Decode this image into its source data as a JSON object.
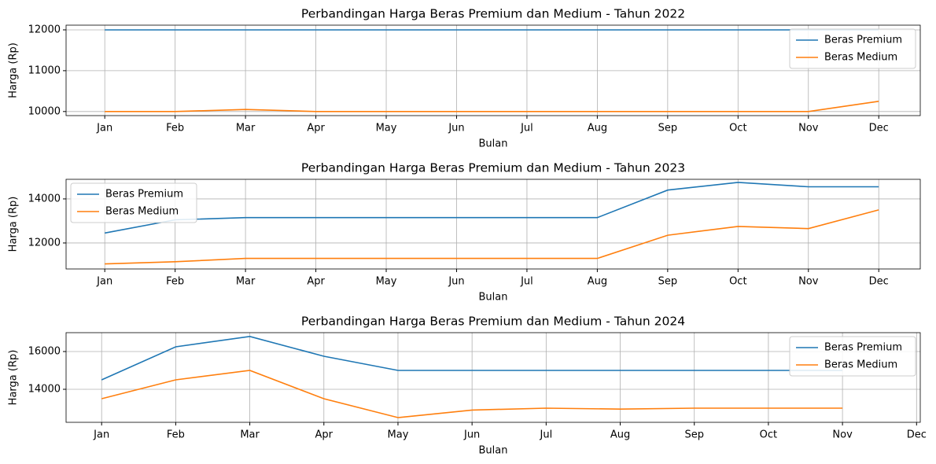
{
  "chart_data": [
    {
      "type": "line",
      "title": "Perbandingan Harga Beras Premium dan Medium - Tahun 2022",
      "x_label": "Bulan",
      "y_label": "Harga (Rp)",
      "categories": [
        "Jan",
        "Feb",
        "Mar",
        "Apr",
        "May",
        "Jun",
        "Jul",
        "Aug",
        "Sep",
        "Oct",
        "Nov",
        "Dec"
      ],
      "series": [
        {
          "name": "Beras Premium",
          "color": "#1f77b4",
          "values": [
            12000,
            12000,
            12000,
            12000,
            12000,
            12000,
            12000,
            12000,
            12000,
            12000,
            12000,
            12000
          ]
        },
        {
          "name": "Beras Medium",
          "color": "#ff7f0e",
          "values": [
            10000,
            10000,
            10050,
            10000,
            10000,
            10000,
            10000,
            10000,
            10000,
            10000,
            10000,
            10250
          ]
        }
      ],
      "ylim": [
        9900,
        12115
      ],
      "yticks": [
        10000,
        11000,
        12000
      ],
      "grid": true,
      "legend": "upper right"
    },
    {
      "type": "line",
      "title": "Perbandingan Harga Beras Premium dan Medium - Tahun 2023",
      "x_label": "Bulan",
      "y_label": "Harga (Rp)",
      "categories": [
        "Jan",
        "Feb",
        "Mar",
        "Apr",
        "May",
        "Jun",
        "Jul",
        "Aug",
        "Sep",
        "Oct",
        "Nov",
        "Dec"
      ],
      "series": [
        {
          "name": "Beras Premium",
          "color": "#1f77b4",
          "values": [
            12450,
            13050,
            13150,
            13150,
            13150,
            13150,
            13150,
            13150,
            14400,
            14750,
            14550,
            14550
          ]
        },
        {
          "name": "Beras Medium",
          "color": "#ff7f0e",
          "values": [
            11050,
            11150,
            11300,
            11300,
            11300,
            11300,
            11300,
            11300,
            12350,
            12750,
            12650,
            13500
          ]
        }
      ],
      "ylim": [
        10820,
        14890
      ],
      "yticks": [
        12000,
        14000
      ],
      "grid": true,
      "legend": "upper left"
    },
    {
      "type": "line",
      "title": "Perbandingan Harga Beras Premium dan Medium - Tahun 2024",
      "x_label": "Bulan",
      "y_label": "Harga (Rp)",
      "categories": [
        "Jan",
        "Feb",
        "Mar",
        "Apr",
        "May",
        "Jun",
        "Jul",
        "Aug",
        "Sep",
        "Oct",
        "Nov",
        "Dec"
      ],
      "series": [
        {
          "name": "Beras Premium",
          "color": "#1f77b4",
          "values": [
            14500,
            16250,
            16800,
            15750,
            15000,
            15000,
            15000,
            15000,
            15000,
            15000,
            15000,
            null
          ]
        },
        {
          "name": "Beras Medium",
          "color": "#ff7f0e",
          "values": [
            13500,
            14500,
            15000,
            13500,
            12500,
            12900,
            13000,
            12950,
            13000,
            13000,
            13000,
            null
          ]
        }
      ],
      "ylim": [
        12250,
        17000
      ],
      "yticks": [
        14000,
        16000
      ],
      "grid": true,
      "legend": "upper right"
    }
  ]
}
